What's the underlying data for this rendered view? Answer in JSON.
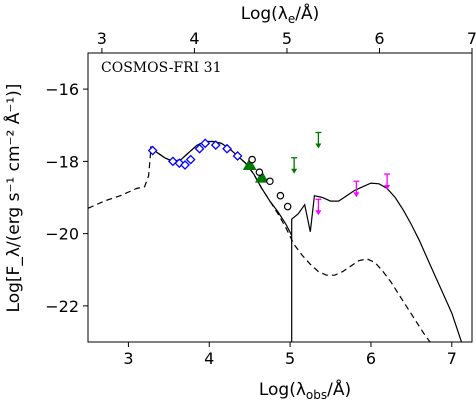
{
  "chart_data": {
    "type": "line",
    "title": "",
    "annotation": "COSMOS-FRI 31",
    "xlabel_bottom": "Log(λ",
    "xlabel_bottom_sub": "obs",
    "xlabel_bottom_end": "/Å)",
    "xlabel_top": "Log(λ",
    "xlabel_top_sub": "e",
    "xlabel_top_end": "/Å)",
    "ylabel": "Log[F_λ/(erg s⁻¹ cm⁻² Å⁻¹)]",
    "xlim": [
      2.5,
      7.25
    ],
    "ylim": [
      -23.0,
      -15.0
    ],
    "top_xlim": [
      2.85,
      7.0
    ],
    "xticks": [
      3,
      4,
      5,
      6,
      7
    ],
    "xtick_labels": [
      "3",
      "4",
      "5",
      "6",
      "7"
    ],
    "top_xticks": [
      3,
      4,
      5,
      6,
      7
    ],
    "top_xtick_labels": [
      "3",
      "4",
      "5",
      "6",
      "7"
    ],
    "yticks": [
      -16,
      -18,
      -20,
      -22
    ],
    "ytick_labels": [
      "−16",
      "−18",
      "−20",
      "−22"
    ],
    "grid": false,
    "legend": "none",
    "colors": {
      "blue": "#0000ff",
      "green": "#007700",
      "magenta": "#ff00ff",
      "black": "#000000"
    },
    "series": [
      {
        "style": "solid",
        "points": [
          [
            3.27,
            -17.6
          ],
          [
            3.35,
            -17.75
          ],
          [
            3.45,
            -17.9
          ],
          [
            3.55,
            -18.0
          ],
          [
            3.65,
            -17.95
          ],
          [
            3.75,
            -17.75
          ],
          [
            3.85,
            -17.55
          ],
          [
            3.95,
            -17.45
          ],
          [
            4.05,
            -17.45
          ],
          [
            4.15,
            -17.5
          ],
          [
            4.25,
            -17.65
          ],
          [
            4.35,
            -17.85
          ],
          [
            4.45,
            -18.05
          ],
          [
            4.55,
            -18.35
          ],
          [
            4.65,
            -18.75
          ],
          [
            4.75,
            -19.1
          ],
          [
            4.85,
            -19.4
          ],
          [
            4.95,
            -19.75
          ],
          [
            5.02,
            -20.05
          ],
          [
            5.02,
            -23.0
          ],
          [
            5.02,
            -19.6
          ],
          [
            5.1,
            -19.45
          ],
          [
            5.18,
            -19.2
          ],
          [
            5.25,
            -19.95
          ],
          [
            5.3,
            -18.95
          ],
          [
            5.4,
            -19.0
          ],
          [
            5.5,
            -19.1
          ],
          [
            5.6,
            -19.1
          ],
          [
            5.7,
            -18.95
          ],
          [
            5.8,
            -18.8
          ],
          [
            5.9,
            -18.7
          ],
          [
            6.0,
            -18.6
          ],
          [
            6.1,
            -18.62
          ],
          [
            6.2,
            -18.75
          ],
          [
            6.3,
            -19.0
          ],
          [
            6.4,
            -19.35
          ],
          [
            6.5,
            -19.75
          ],
          [
            6.6,
            -20.2
          ],
          [
            6.7,
            -20.7
          ],
          [
            6.8,
            -21.2
          ],
          [
            6.9,
            -21.7
          ],
          [
            7.0,
            -22.2
          ],
          [
            7.12,
            -23.0
          ]
        ]
      },
      {
        "style": "dashed",
        "points": [
          [
            2.5,
            -19.3
          ],
          [
            2.7,
            -19.1
          ],
          [
            2.9,
            -18.95
          ],
          [
            3.1,
            -18.75
          ],
          [
            3.2,
            -18.7
          ],
          [
            3.25,
            -18.4
          ],
          [
            3.28,
            -17.6
          ],
          [
            3.35,
            -17.75
          ],
          [
            3.45,
            -17.9
          ],
          [
            3.55,
            -18.0
          ],
          [
            3.65,
            -17.95
          ],
          [
            3.75,
            -17.75
          ],
          [
            3.85,
            -17.55
          ],
          [
            3.95,
            -17.45
          ],
          [
            4.05,
            -17.45
          ],
          [
            4.15,
            -17.5
          ],
          [
            4.25,
            -17.65
          ],
          [
            4.35,
            -17.85
          ],
          [
            4.45,
            -18.05
          ],
          [
            4.55,
            -18.35
          ],
          [
            4.65,
            -18.75
          ],
          [
            4.75,
            -19.1
          ],
          [
            4.85,
            -19.45
          ],
          [
            4.95,
            -19.85
          ],
          [
            5.05,
            -20.3
          ],
          [
            5.15,
            -20.6
          ],
          [
            5.25,
            -20.85
          ],
          [
            5.35,
            -21.05
          ],
          [
            5.45,
            -21.15
          ],
          [
            5.55,
            -21.15
          ],
          [
            5.65,
            -21.05
          ],
          [
            5.75,
            -20.9
          ],
          [
            5.85,
            -20.75
          ],
          [
            5.95,
            -20.7
          ],
          [
            6.05,
            -20.8
          ],
          [
            6.15,
            -21.05
          ],
          [
            6.25,
            -21.35
          ],
          [
            6.35,
            -21.7
          ],
          [
            6.45,
            -22.05
          ],
          [
            6.55,
            -22.4
          ],
          [
            6.65,
            -22.75
          ],
          [
            6.73,
            -23.0
          ]
        ]
      }
    ],
    "blue_points": [
      [
        3.3,
        -17.7
      ],
      [
        3.55,
        -18.0
      ],
      [
        3.63,
        -18.05
      ],
      [
        3.7,
        -18.1
      ],
      [
        3.77,
        -17.95
      ],
      [
        3.88,
        -17.65
      ],
      [
        3.95,
        -17.5
      ],
      [
        4.08,
        -17.55
      ],
      [
        4.22,
        -17.65
      ],
      [
        4.35,
        -17.85
      ]
    ],
    "green_points": [
      [
        4.5,
        -18.1
      ],
      [
        4.65,
        -18.45
      ]
    ],
    "open_circles": [
      [
        4.53,
        -17.95
      ],
      [
        4.62,
        -18.3
      ],
      [
        4.75,
        -18.55
      ],
      [
        4.88,
        -18.95
      ],
      [
        4.97,
        -19.25
      ]
    ],
    "green_upper_limits": [
      [
        5.05,
        -17.9
      ],
      [
        5.35,
        -17.2
      ]
    ],
    "magenta_upper_limits": [
      [
        5.35,
        -19.05
      ],
      [
        5.82,
        -18.55
      ],
      [
        6.2,
        -18.35
      ]
    ]
  }
}
